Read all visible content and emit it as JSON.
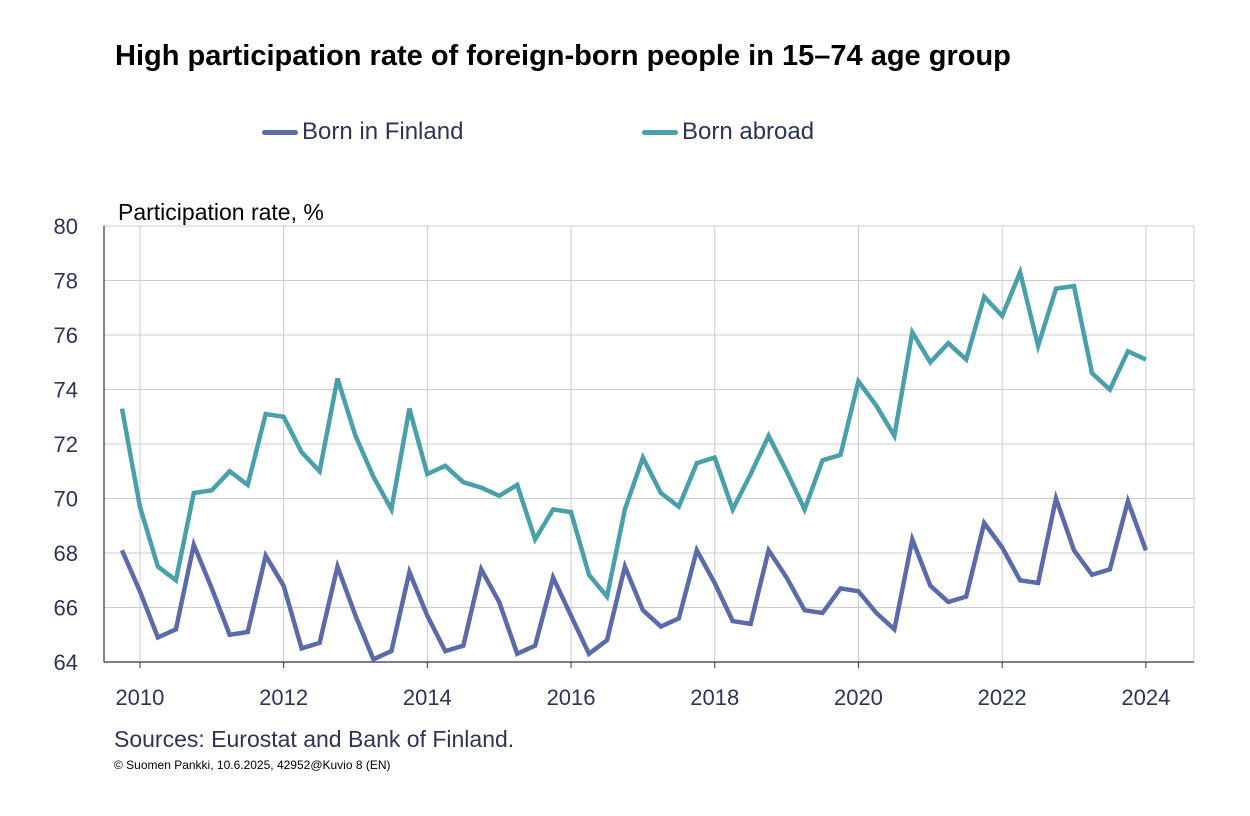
{
  "title": "High participation rate of foreign-born people in 15–74 age group",
  "sources": "Sources: Eurostat and Bank of Finland.",
  "copyright": "© Suomen Pankki, 10.6.2025,  42952@Kuvio  8 (EN)",
  "colors": {
    "finland": "#5b6aa9",
    "abroad": "#4aa0aa",
    "grid": "#cccccc",
    "axis": "#333333"
  },
  "chart_data": {
    "type": "line",
    "ylabel": "Participation rate, %",
    "ylim": [
      64,
      80
    ],
    "yticks": [
      64,
      66,
      68,
      70,
      72,
      74,
      76,
      78,
      80
    ],
    "xlim": [
      2009.5,
      2024.67
    ],
    "xticks": [
      "2010",
      "2012",
      "2014",
      "2016",
      "2018",
      "2020",
      "2022",
      "2024"
    ],
    "x_start": "2009Q4",
    "x_step": "quarter",
    "grid": true,
    "legend_position": "top",
    "series": [
      {
        "name": "Born in Finland",
        "color": "#5b6aa9",
        "values": [
          68.1,
          66.6,
          64.9,
          65.2,
          68.3,
          66.7,
          65.0,
          65.1,
          67.9,
          66.8,
          64.5,
          64.7,
          67.5,
          65.7,
          64.1,
          64.4,
          67.3,
          65.7,
          64.4,
          64.6,
          67.4,
          66.2,
          64.3,
          64.6,
          67.1,
          65.7,
          64.3,
          64.8,
          67.5,
          65.9,
          65.3,
          65.6,
          68.1,
          66.9,
          65.5,
          65.4,
          68.1,
          67.1,
          65.9,
          65.8,
          66.7,
          66.6,
          65.8,
          65.2,
          68.5,
          66.8,
          66.2,
          66.4,
          69.1,
          68.2,
          67.0,
          66.9,
          70.0,
          68.1,
          67.2,
          67.4,
          69.9,
          68.1
        ]
      },
      {
        "name": "Born abroad",
        "color": "#4aa0aa",
        "values": [
          73.3,
          69.7,
          67.5,
          67.0,
          70.2,
          70.3,
          71.0,
          70.5,
          73.1,
          73.0,
          71.7,
          71.0,
          74.4,
          72.3,
          70.8,
          69.6,
          73.3,
          70.9,
          71.2,
          70.6,
          70.4,
          70.1,
          70.5,
          68.5,
          69.6,
          69.5,
          67.2,
          66.4,
          69.6,
          71.5,
          70.2,
          69.7,
          71.3,
          71.5,
          69.6,
          70.9,
          72.3,
          71.0,
          69.6,
          71.4,
          71.6,
          74.3,
          73.4,
          72.3,
          76.1,
          75.0,
          75.7,
          75.1,
          77.4,
          76.7,
          78.3,
          75.6,
          77.7,
          77.8,
          74.6,
          74.0,
          75.4,
          75.1
        ]
      }
    ]
  }
}
